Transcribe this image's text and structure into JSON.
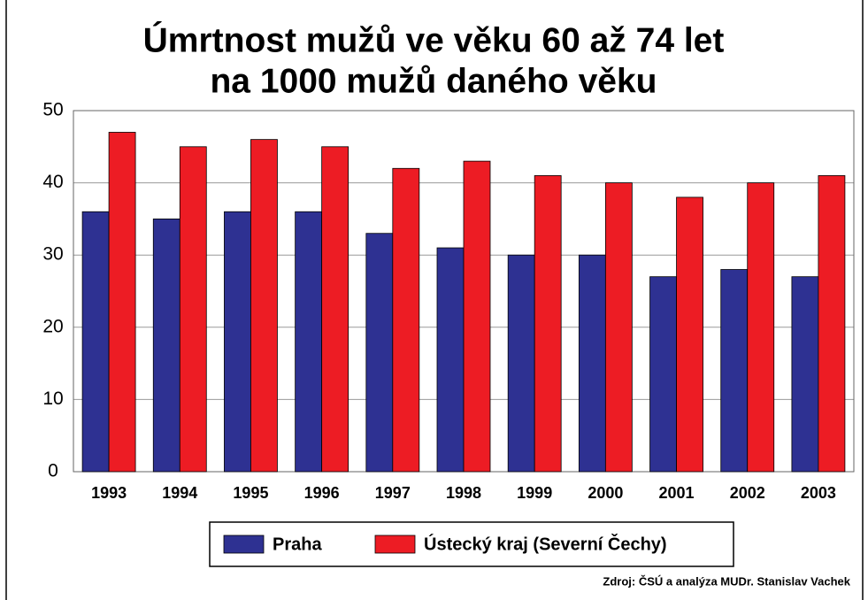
{
  "chart_data": {
    "type": "bar",
    "title": [
      "Úmrtnost mužů ve věku 60 až 74 let",
      "na 1000 mužů daného věku"
    ],
    "categories": [
      "1993",
      "1994",
      "1995",
      "1996",
      "1997",
      "1998",
      "1999",
      "2000",
      "2001",
      "2002",
      "2003"
    ],
    "series": [
      {
        "name": "Praha",
        "color": "#2e3192",
        "values": [
          36,
          35,
          36,
          36,
          33,
          31,
          30,
          30,
          27,
          28,
          27
        ]
      },
      {
        "name": "Ústecký kraj (Severní Čechy)",
        "color": "#ed1c24",
        "values": [
          47,
          45,
          46,
          45,
          42,
          43,
          41,
          40,
          38,
          40,
          41
        ]
      }
    ],
    "ylim": [
      0,
      50
    ],
    "yticks": [
      0,
      10,
      20,
      30,
      40,
      50
    ],
    "grid": true,
    "legend": "bottom",
    "source": "Zdroj: ČSÚ a analýza MUDr. Stanislav Vachek"
  }
}
